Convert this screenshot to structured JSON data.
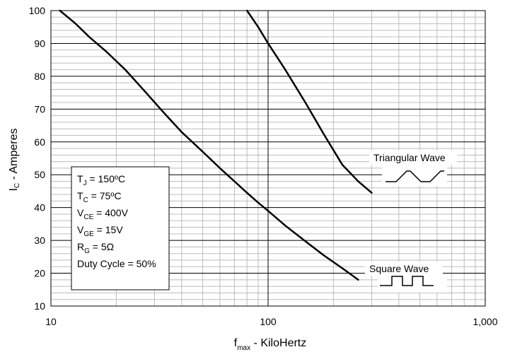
{
  "chart_data": {
    "type": "line",
    "title": "",
    "xlabel_main": "f",
    "xlabel_sub": "max",
    "xlabel_rest": " - KiloHertz",
    "ylabel_main": "I",
    "ylabel_sub": "C",
    "ylabel_rest": " - Amperes",
    "xscale": "log",
    "xlim": [
      10,
      1000
    ],
    "ylim": [
      10,
      100
    ],
    "grid": true,
    "x_ticks": [
      "10",
      "100",
      "1,000"
    ],
    "y_ticks": [
      "10",
      "20",
      "30",
      "40",
      "50",
      "60",
      "70",
      "80",
      "90",
      "100"
    ],
    "series": [
      {
        "name": "Square Wave",
        "x": [
          11.0,
          13,
          15,
          18,
          22,
          27,
          33,
          40,
          50,
          60,
          70,
          80,
          90,
          100,
          120,
          150,
          180,
          220,
          260
        ],
        "y": [
          100,
          96,
          92,
          87.5,
          82,
          75.5,
          69,
          63,
          57,
          52,
          48,
          44.5,
          41.5,
          39,
          34.5,
          29.5,
          25.5,
          21.5,
          18
        ]
      },
      {
        "name": "Triangular Wave",
        "x": [
          80,
          90,
          100,
          120,
          150,
          180,
          220,
          260,
          300
        ],
        "y": [
          100,
          95,
          90,
          82,
          71.5,
          62.5,
          53,
          48,
          44.5
        ]
      }
    ],
    "labels": {
      "triangular": "Triangular Wave",
      "square": "Square Wave"
    },
    "conditions": [
      {
        "main": "T",
        "sub": "J",
        "rest": " = 150ºC"
      },
      {
        "main": "T",
        "sub": "C",
        "rest": " = 75ºC"
      },
      {
        "main": "V",
        "sub": "CE",
        "rest": " = 400V"
      },
      {
        "main": "V",
        "sub": "GE",
        "rest": " = 15V"
      },
      {
        "main": "R",
        "sub": "G",
        "rest": " = 5Ω"
      },
      {
        "main": "Duty Cycle = 50%",
        "sub": "",
        "rest": ""
      }
    ]
  }
}
